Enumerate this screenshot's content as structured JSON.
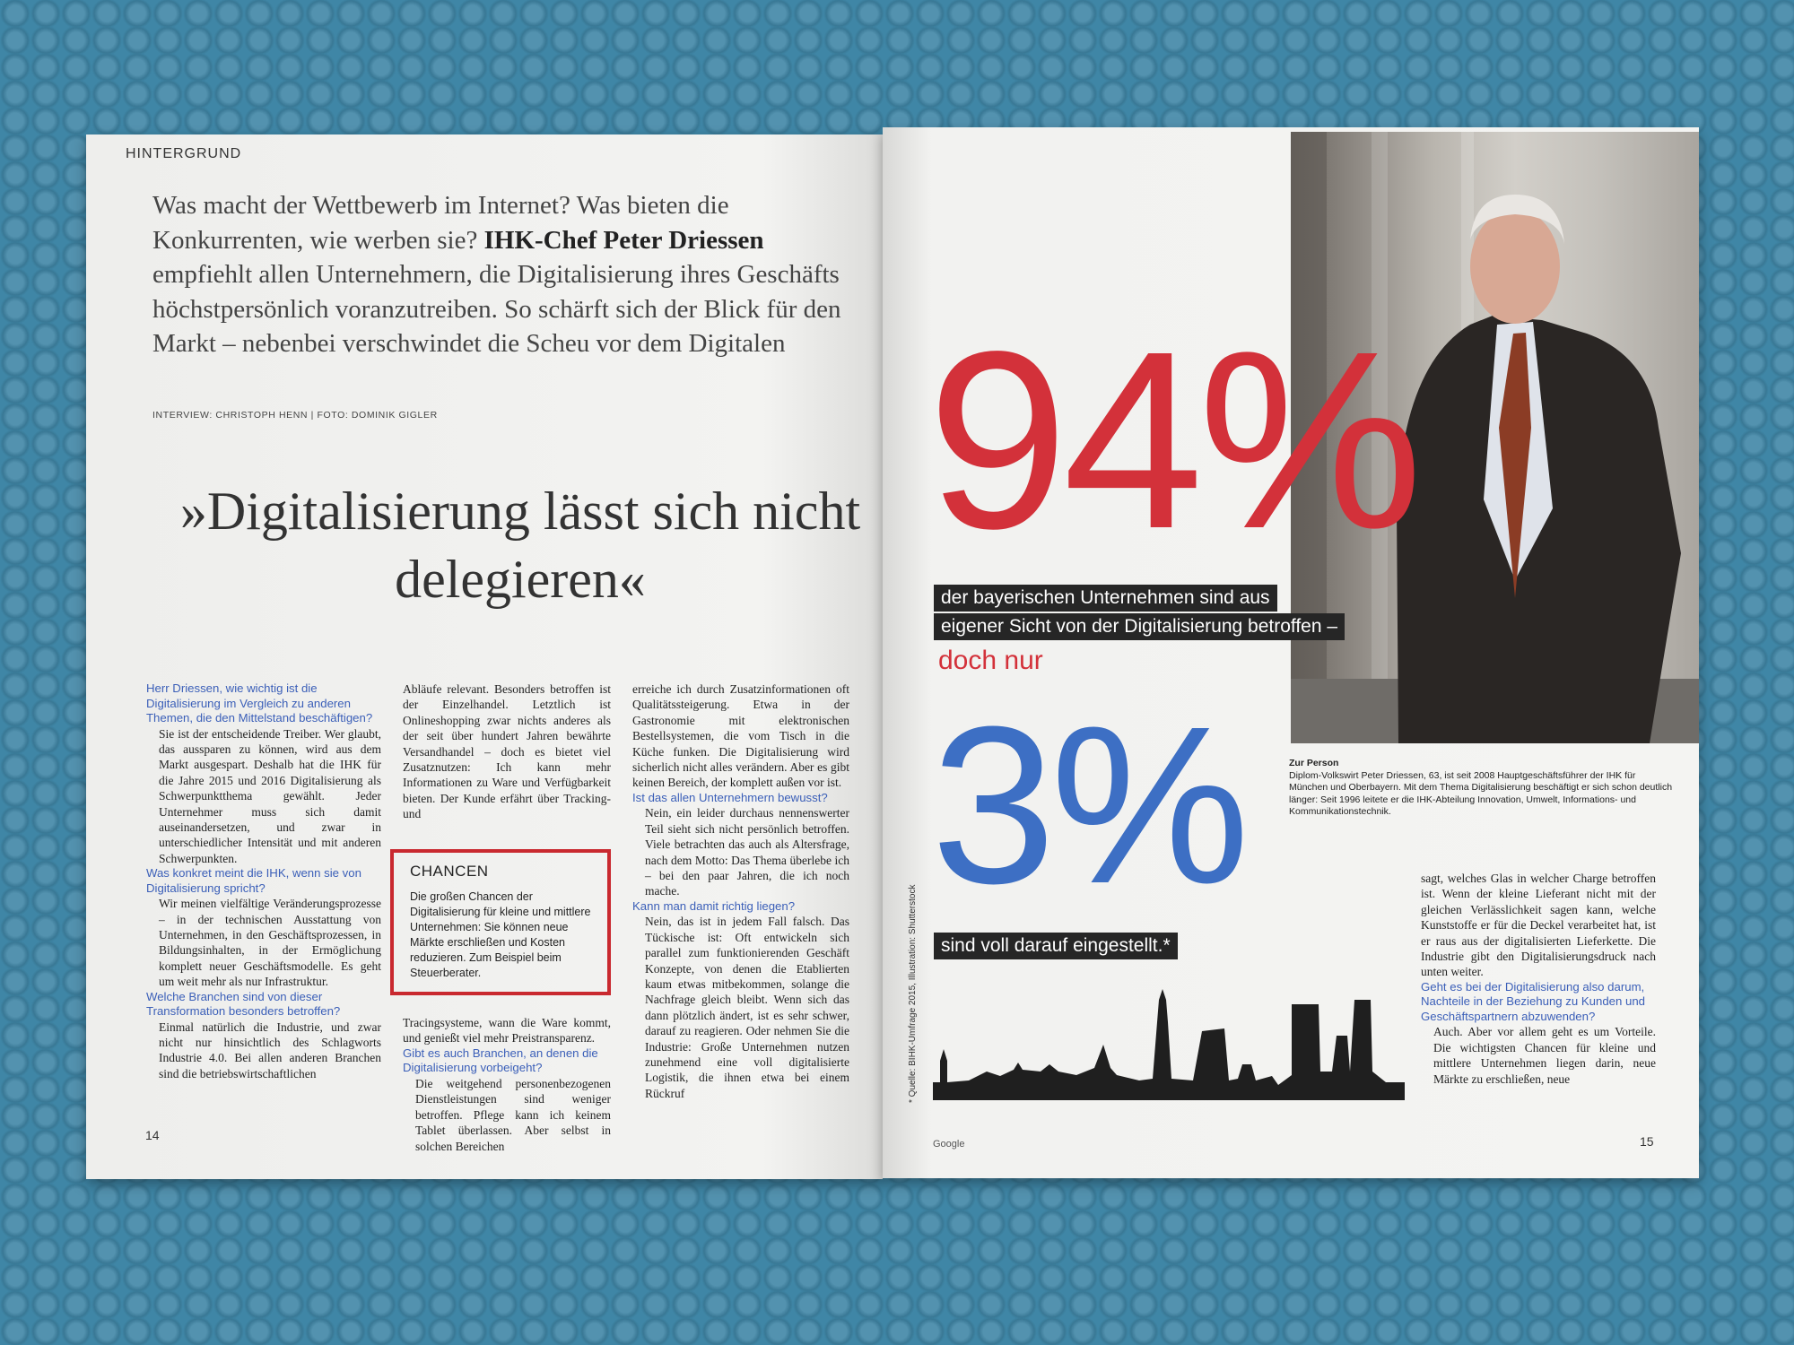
{
  "left_page": {
    "section": "HINTERGRUND",
    "intro_before": "Was macht der Wettbewerb im Internet? Was bieten die Konkurrenten, wie werben sie? ",
    "intro_bold": "IHK-Chef Peter Driessen",
    "intro_after": " empfiehlt allen Unternehmern, die Digitalisierung ihres Geschäfts höchstpersönlich voranzutreiben. So schärft sich der Blick für den Markt – nebenbei verschwindet die Scheu vor dem Digitalen",
    "credits": "INTERVIEW: CHRISTOPH HENN  |  FOTO: DOMINIK GIGLER",
    "headline": "»Digitalisierung lässt sich nicht delegieren«",
    "page_number": "14",
    "col1": {
      "q1": "Herr Driessen, wie wichtig ist die Digitalisierung im Vergleich zu anderen Themen, die den Mittelstand beschäftigen?",
      "a1": "Sie ist der entscheidende Treiber. Wer glaubt, das aussparen zu können, wird aus dem Markt ausgespart. Deshalb hat die IHK für die Jahre 2015 und 2016 Digitalisierung als Schwerpunktthema gewählt. Jeder Unternehmer muss sich damit auseinandersetzen, und zwar in unterschiedlicher Intensität und mit anderen Schwerpunkten.",
      "q2": "Was konkret meint die IHK, wenn sie von Digitalisierung spricht?",
      "a2": "Wir meinen vielfältige Veränderungsprozesse – in der technischen Ausstattung von Unternehmen, in den Geschäftsprozessen, in Bildungsinhalten, in der Ermöglichung komplett neuer Geschäftsmodelle. Es geht um weit mehr als nur Infrastruktur.",
      "q3": "Welche Branchen sind von dieser Transformation besonders betroffen?",
      "a3": "Einmal natürlich die Industrie, und zwar nicht nur hinsichtlich des Schlagworts Industrie 4.0. Bei allen anderen Branchen sind die betriebswirtschaftlichen"
    },
    "col2": {
      "a3_cont": "Abläufe relevant. Besonders betroffen ist der Einzelhandel. Letztlich ist Onlineshopping zwar nichts anderes als der seit über hundert Jahren bewährte Versandhandel – doch es bietet viel Zusatznutzen: Ich kann mehr Informationen zu Ware und Verfügbarkeit bieten. Der Kunde erfährt über Tracking- und",
      "box_title": "CHANCEN",
      "box_text": "Die großen Chancen der Digitalisierung für kleine und mittlere Unternehmen: Sie können neue Märkte erschließen und Kosten reduzieren. Zum Beispiel beim Steuerberater.",
      "a3_end": "Tracingsysteme, wann die Ware kommt, und genießt viel mehr Preistransparenz.",
      "q4": "Gibt es auch Branchen, an denen die Digitalisierung vorbeigeht?",
      "a4": "Die weitgehend personenbezogenen Dienstleistungen sind weniger betroffen. Pflege kann ich keinem Tablet überlassen. Aber selbst in solchen Bereichen"
    },
    "col3": {
      "a4_cont": "erreiche ich durch Zusatzinformationen oft Qualitätssteigerung. Etwa in der Gastronomie mit elektronischen Bestellsystemen, die vom Tisch in die Küche funken. Die Digitalisierung wird sicherlich nicht alles verändern. Aber es gibt keinen Bereich, der komplett außen vor ist.",
      "q5": "Ist das allen Unternehmern bewusst?",
      "a5": "Nein, ein leider durchaus nennenswerter Teil sieht sich nicht persönlich betroffen. Viele betrachten das auch als Altersfrage, nach dem Motto: Das Thema überlebe ich – bei den paar Jahren, die ich noch mache.",
      "q6": "Kann man damit richtig liegen?",
      "a6": "Nein, das ist in jedem Fall falsch. Das Tückische ist: Oft entwickeln sich parallel zum funktionierenden Geschäft Konzepte, von denen die Etablierten kaum etwas mitbekommen, solange die Nachfrage gleich bleibt. Wenn sich das dann plötzlich ändert, ist es sehr schwer, darauf zu reagieren. Oder nehmen Sie die Industrie: Große Unternehmen nutzen zunehmend eine voll digitalisierte Logistik, die ihnen etwa bei einem Rückruf"
    }
  },
  "right_page": {
    "stat1_value": "94%",
    "stat1_line1": "der bayerischen Unternehmen sind aus",
    "stat1_line2": "eigener Sicht von der Digitalisierung betroffen –",
    "connector": "doch nur",
    "stat2_value": "3%",
    "stat2_label": "sind voll darauf eingestellt.*",
    "source": "* Quelle: BIHK-Umfrage 2015, Illustration: Shutterstock",
    "google_label": "Google",
    "page_number": "15",
    "person_title": "Zur Person",
    "person_text": "Diplom-Volkswirt Peter Driessen, 63, ist seit 2008 Hauptgeschäftsführer der IHK für München und Oberbayern. Mit dem Thema Digitalisierung beschäftigt er sich schon deutlich länger: Seit 1996 leitete er die IHK-Abteilung Innovation, Umwelt, Informations- und Kommunikationstechnik.",
    "col4": {
      "a6_cont": "sagt, welches Glas in welcher Charge betroffen ist. Wenn der kleine Lieferant nicht mit der gleichen Verlässlichkeit sagen kann, welche Kunststoffe er für die Deckel verarbeitet hat, ist er raus aus der digitalisierten Lieferkette. Die Industrie gibt den Digitalisierungsdruck nach unten weiter.",
      "q7": "Geht es bei der Digitalisierung also darum, Nachteile in der Beziehung zu Kunden und Geschäftspartnern abzuwenden?",
      "a7": "Auch. Aber vor allem geht es um Vorteile. Die wichtigsten Chancen für kleine und mittlere Unternehmen liegen darin, neue Märkte zu erschließen, neue"
    }
  },
  "colors": {
    "red": "#d3313a",
    "blue": "#3d6fc4",
    "question_blue": "#3b5fb8",
    "box_red": "#c9292f"
  }
}
